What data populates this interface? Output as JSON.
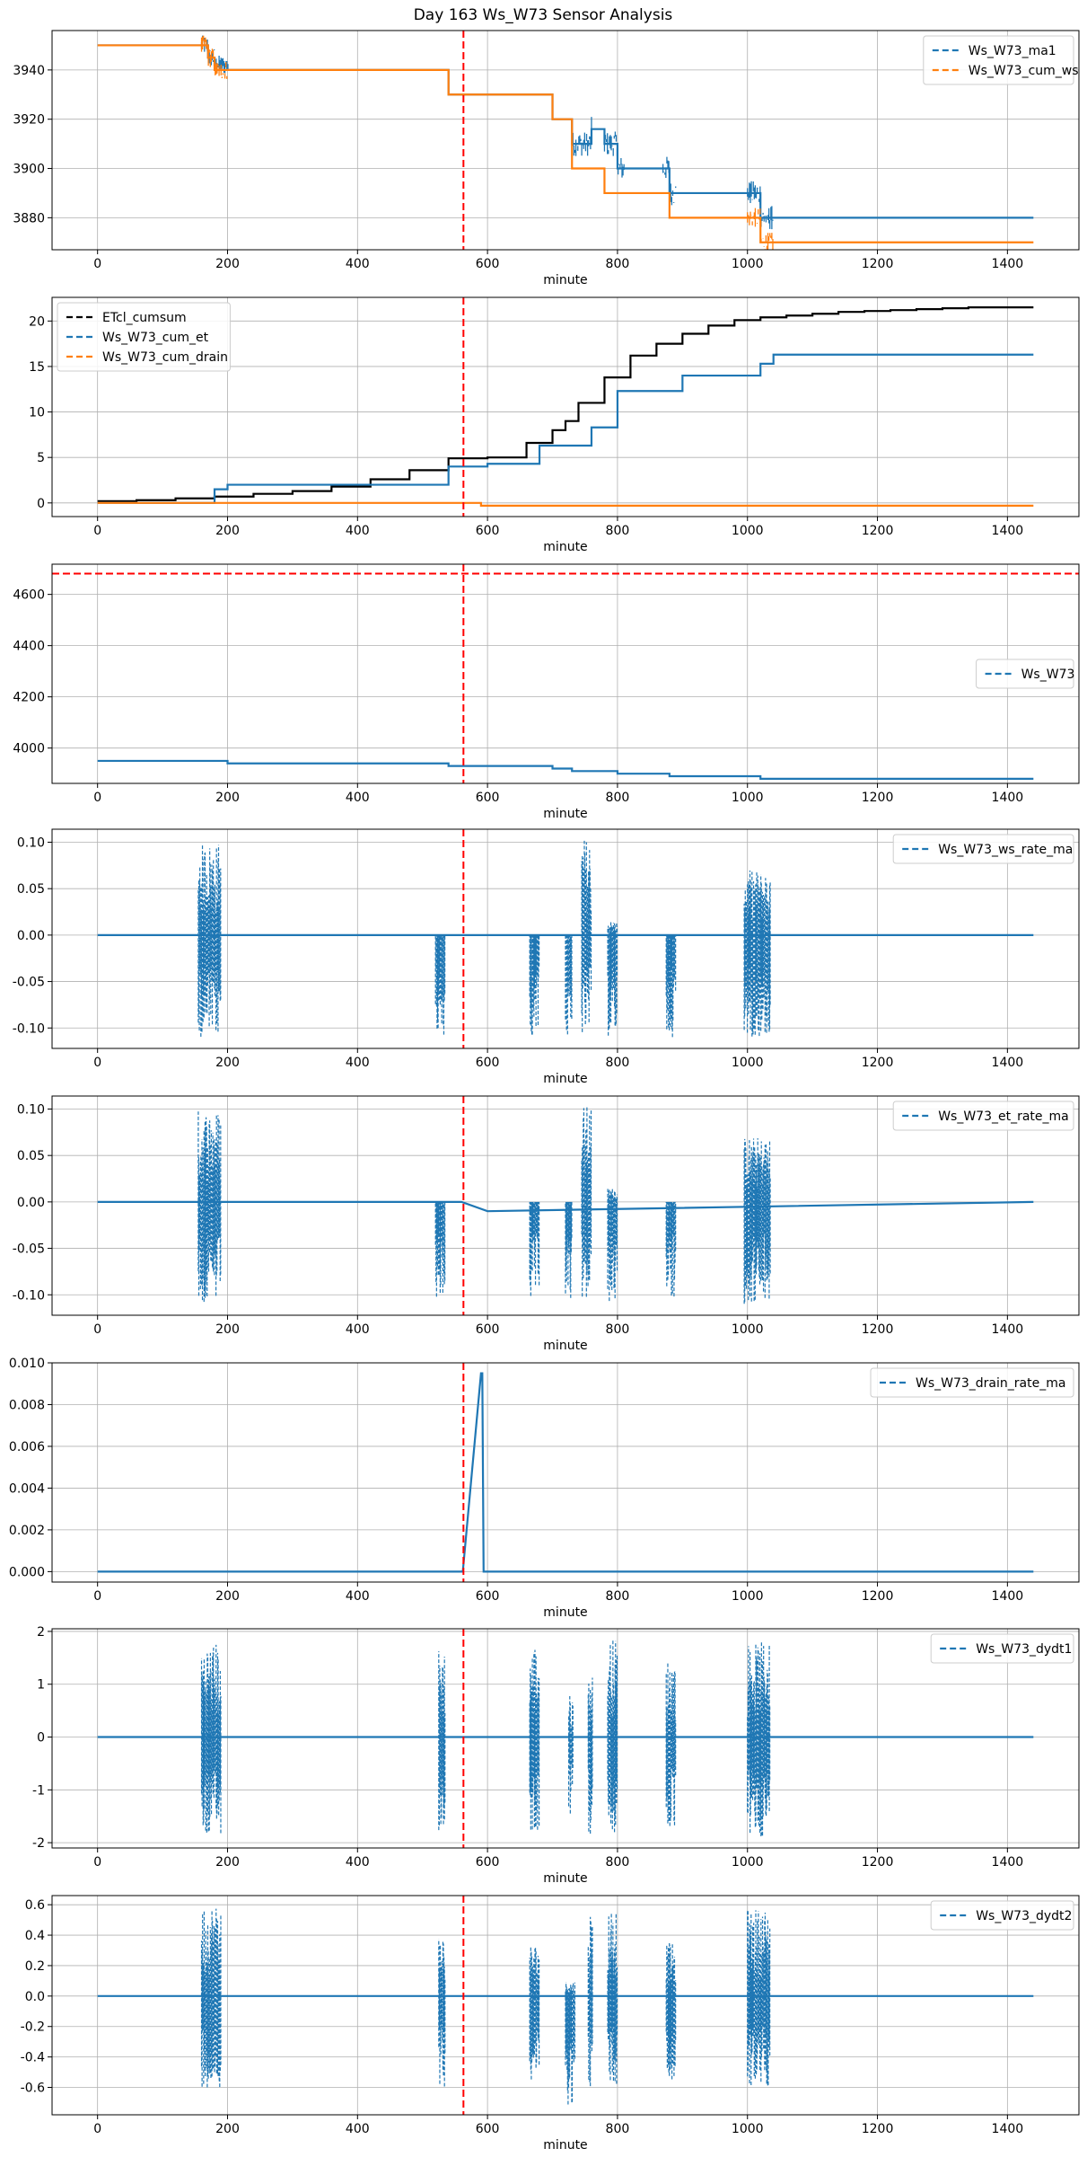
{
  "figure": {
    "title": "Day 163 Ws_W73 Sensor Analysis"
  },
  "colors": {
    "blue": "#1f77b4",
    "orange": "#ff7f0e",
    "black": "#000000",
    "red": "#ff0000",
    "grid": "#b0b0b0"
  },
  "chart_data": [
    {
      "type": "line",
      "xlabel": "minute",
      "xlim": [
        -70,
        1510
      ],
      "ylim": [
        3867,
        3956
      ],
      "xticks": [
        0,
        200,
        400,
        600,
        800,
        1000,
        1200,
        1400
      ],
      "yticks": [
        3880,
        3900,
        3920,
        3940
      ],
      "ytick_labels": [
        "3880",
        "3900",
        "3920",
        "3940"
      ],
      "grid": true,
      "legend_position": "top-right",
      "vlines": [
        563
      ],
      "series": [
        {
          "name": "Ws_W73_ma1",
          "color": "#1f77b4",
          "style": "dashed",
          "kind": "step",
          "x": [
            0,
            160,
            170,
            180,
            200,
            530,
            540,
            560,
            600,
            660,
            700,
            730,
            760,
            780,
            800,
            870,
            880,
            900,
            1000,
            1020,
            1040,
            1440
          ],
          "y": [
            3950,
            3950,
            3945,
            3942,
            3940,
            3940,
            3930,
            3930,
            3930,
            3930,
            3920,
            3910,
            3916,
            3910,
            3900,
            3900,
            3890,
            3890,
            3890,
            3880,
            3880,
            3880
          ],
          "noise": [
            [
              160,
              200,
              4
            ],
            [
              730,
              760,
              5
            ],
            [
              780,
              810,
              5
            ],
            [
              870,
              890,
              5
            ],
            [
              1000,
              1040,
              5
            ]
          ]
        },
        {
          "name": "Ws_W73_cum_ws",
          "color": "#ff7f0e",
          "style": "dashed",
          "kind": "step",
          "x": [
            0,
            160,
            170,
            180,
            200,
            530,
            540,
            560,
            600,
            660,
            700,
            730,
            760,
            780,
            800,
            870,
            880,
            900,
            1000,
            1020,
            1040,
            1440
          ],
          "y": [
            3950,
            3950,
            3945,
            3940,
            3940,
            3940,
            3930,
            3930,
            3930,
            3930,
            3920,
            3900,
            3900,
            3890,
            3890,
            3890,
            3880,
            3880,
            3880,
            3870,
            3870,
            3870
          ],
          "noise": [
            [
              160,
              200,
              4
            ],
            [
              1000,
              1040,
              4
            ]
          ]
        }
      ]
    },
    {
      "type": "line",
      "xlabel": "minute",
      "xlim": [
        -70,
        1510
      ],
      "ylim": [
        -1.5,
        22.6
      ],
      "xticks": [
        0,
        200,
        400,
        600,
        800,
        1000,
        1200,
        1400
      ],
      "yticks": [
        0,
        5,
        10,
        15,
        20
      ],
      "ytick_labels": [
        "0",
        "5",
        "10",
        "15",
        "20"
      ],
      "grid": true,
      "legend_position": "top-left",
      "vlines": [
        563
      ],
      "series": [
        {
          "name": "ETcl_cumsum",
          "color": "#000000",
          "style": "dashed",
          "kind": "step",
          "x": [
            0,
            60,
            120,
            180,
            240,
            300,
            360,
            420,
            480,
            540,
            600,
            660,
            700,
            720,
            740,
            780,
            820,
            860,
            900,
            940,
            980,
            1020,
            1060,
            1100,
            1140,
            1180,
            1220,
            1260,
            1300,
            1340,
            1380,
            1440
          ],
          "y": [
            0.2,
            0.3,
            0.5,
            0.7,
            1.0,
            1.3,
            1.8,
            2.6,
            3.6,
            4.9,
            5.0,
            6.6,
            8.0,
            9.0,
            11.0,
            13.8,
            16.2,
            17.5,
            18.6,
            19.5,
            20.1,
            20.4,
            20.6,
            20.8,
            21.0,
            21.1,
            21.2,
            21.3,
            21.4,
            21.5,
            21.5,
            21.5
          ]
        },
        {
          "name": "Ws_W73_cum_et",
          "color": "#1f77b4",
          "style": "dashed",
          "kind": "step",
          "x": [
            0,
            160,
            180,
            200,
            520,
            540,
            560,
            600,
            660,
            680,
            720,
            760,
            800,
            880,
            900,
            1000,
            1020,
            1040,
            1440
          ],
          "y": [
            0,
            0,
            1.5,
            2.0,
            2.0,
            4.0,
            4.0,
            4.3,
            4.3,
            6.3,
            6.3,
            8.3,
            12.3,
            12.3,
            14.0,
            14.0,
            15.3,
            16.3,
            16.3
          ]
        },
        {
          "name": "Ws_W73_cum_drain",
          "color": "#ff7f0e",
          "style": "dashed",
          "kind": "step",
          "x": [
            0,
            560,
            590,
            1440
          ],
          "y": [
            0,
            0,
            -0.3,
            -0.3
          ]
        }
      ]
    },
    {
      "type": "line",
      "xlabel": "minute",
      "xlim": [
        -70,
        1510
      ],
      "ylim": [
        3862,
        4718
      ],
      "xticks": [
        0,
        200,
        400,
        600,
        800,
        1000,
        1200,
        1400
      ],
      "yticks": [
        4000,
        4200,
        4400,
        4600
      ],
      "ytick_labels": [
        "4000",
        "4200",
        "4400",
        "4600"
      ],
      "grid": true,
      "legend_position": "center-right",
      "vlines": [
        563
      ],
      "hlines": [
        4681
      ],
      "series": [
        {
          "name": "Ws_W73",
          "color": "#1f77b4",
          "style": "dashed",
          "kind": "step",
          "x": [
            0,
            180,
            200,
            530,
            540,
            700,
            730,
            800,
            880,
            1000,
            1020,
            1440
          ],
          "y": [
            3950,
            3950,
            3940,
            3940,
            3930,
            3920,
            3910,
            3900,
            3890,
            3890,
            3880,
            3880
          ]
        }
      ]
    },
    {
      "type": "line",
      "xlabel": "minute",
      "xlim": [
        -70,
        1510
      ],
      "ylim": [
        -0.122,
        0.114
      ],
      "xticks": [
        0,
        200,
        400,
        600,
        800,
        1000,
        1200,
        1400
      ],
      "yticks": [
        -0.1,
        -0.05,
        0.0,
        0.05,
        0.1
      ],
      "ytick_labels": [
        "-0.10",
        "-0.05",
        "0.00",
        "0.05",
        "0.10"
      ],
      "grid": true,
      "legend_position": "top-right",
      "vlines": [
        563
      ],
      "series": [
        {
          "name": "Ws_W73_ws_rate_ma",
          "color": "#1f77b4",
          "style": "dashed",
          "kind": "bursts",
          "x": [
            0,
            1440
          ],
          "y": [
            0,
            0
          ],
          "bursts": [
            [
              155,
              190,
              -0.11,
              0.1
            ],
            [
              520,
              535,
              -0.11,
              0.0
            ],
            [
              665,
              680,
              -0.11,
              0.0
            ],
            [
              720,
              730,
              -0.11,
              0.0
            ],
            [
              745,
              760,
              -0.11,
              0.105
            ],
            [
              785,
              800,
              -0.11,
              0.015
            ],
            [
              875,
              890,
              -0.11,
              0.0
            ],
            [
              995,
              1035,
              -0.11,
              0.07
            ]
          ]
        }
      ]
    },
    {
      "type": "line",
      "xlabel": "minute",
      "xlim": [
        -70,
        1510
      ],
      "ylim": [
        -0.122,
        0.114
      ],
      "xticks": [
        0,
        200,
        400,
        600,
        800,
        1000,
        1200,
        1400
      ],
      "yticks": [
        -0.1,
        -0.05,
        0.0,
        0.05,
        0.1
      ],
      "ytick_labels": [
        "-0.10",
        "-0.05",
        "0.00",
        "0.05",
        "0.10"
      ],
      "grid": true,
      "legend_position": "top-right",
      "vlines": [
        563
      ],
      "series": [
        {
          "name": "Ws_W73_et_rate_ma",
          "color": "#1f77b4",
          "style": "dashed",
          "kind": "bursts",
          "x": [
            0,
            560,
            600,
            1440
          ],
          "y": [
            0,
            0,
            -0.01,
            0
          ],
          "bursts": [
            [
              155,
              190,
              -0.11,
              0.1
            ],
            [
              520,
              535,
              -0.11,
              0.0
            ],
            [
              665,
              680,
              -0.11,
              0.0
            ],
            [
              720,
              730,
              -0.11,
              0.0
            ],
            [
              745,
              760,
              -0.11,
              0.105
            ],
            [
              785,
              800,
              -0.11,
              0.015
            ],
            [
              875,
              890,
              -0.11,
              0.0
            ],
            [
              995,
              1035,
              -0.11,
              0.07
            ]
          ]
        }
      ]
    },
    {
      "type": "line",
      "xlabel": "minute",
      "xlim": [
        -70,
        1510
      ],
      "ylim": [
        -0.0005,
        0.01
      ],
      "xticks": [
        0,
        200,
        400,
        600,
        800,
        1000,
        1200,
        1400
      ],
      "yticks": [
        0.0,
        0.002,
        0.004,
        0.006,
        0.008,
        0.01
      ],
      "ytick_labels": [
        "0.000",
        "0.002",
        "0.004",
        "0.006",
        "0.008",
        "0.010"
      ],
      "grid": true,
      "legend_position": "top-right",
      "vlines": [
        563
      ],
      "series": [
        {
          "name": "Ws_W73_drain_rate_ma",
          "color": "#1f77b4",
          "style": "dashed",
          "kind": "line",
          "x": [
            0,
            562,
            590,
            592,
            594,
            600,
            1440
          ],
          "y": [
            0,
            0,
            0.0095,
            0.0095,
            0,
            0,
            0
          ]
        }
      ]
    },
    {
      "type": "line",
      "xlabel": "minute",
      "xlim": [
        -70,
        1510
      ],
      "ylim": [
        -2.1,
        2.05
      ],
      "xticks": [
        0,
        200,
        400,
        600,
        800,
        1000,
        1200,
        1400
      ],
      "yticks": [
        -2,
        -1,
        0,
        1,
        2
      ],
      "ytick_labels": [
        "-2",
        "-1",
        "0",
        "1",
        "2"
      ],
      "grid": true,
      "legend_position": "top-right",
      "vlines": [
        563
      ],
      "series": [
        {
          "name": "Ws_W73_dydt1",
          "color": "#1f77b4",
          "style": "dashed",
          "kind": "bursts",
          "x": [
            0,
            1440
          ],
          "y": [
            0,
            0
          ],
          "bursts": [
            [
              160,
              190,
              -1.9,
              1.8
            ],
            [
              525,
              535,
              -1.8,
              1.7
            ],
            [
              665,
              680,
              -1.8,
              1.8
            ],
            [
              725,
              732,
              -1.5,
              0.8
            ],
            [
              755,
              762,
              -1.9,
              1.2
            ],
            [
              785,
              800,
              -1.9,
              1.9
            ],
            [
              875,
              890,
              -1.8,
              1.5
            ],
            [
              1000,
              1035,
              -1.9,
              1.8
            ]
          ]
        }
      ]
    },
    {
      "type": "line",
      "xlabel": "minute",
      "xlim": [
        -70,
        1510
      ],
      "ylim": [
        -0.78,
        0.66
      ],
      "xticks": [
        0,
        200,
        400,
        600,
        800,
        1000,
        1200,
        1400
      ],
      "yticks": [
        -0.6,
        -0.4,
        -0.2,
        0.0,
        0.2,
        0.4,
        0.6
      ],
      "ytick_labels": [
        "-0.6",
        "-0.4",
        "-0.2",
        "0.0",
        "0.2",
        "0.4",
        "0.6"
      ],
      "grid": true,
      "legend_position": "top-right",
      "vlines": [
        563
      ],
      "series": [
        {
          "name": "Ws_W73_dydt2",
          "color": "#1f77b4",
          "style": "dashed",
          "kind": "bursts",
          "x": [
            0,
            1440
          ],
          "y": [
            0,
            0
          ],
          "bursts": [
            [
              160,
              190,
              -0.6,
              0.62
            ],
            [
              525,
              535,
              -0.6,
              0.42
            ],
            [
              665,
              680,
              -0.55,
              0.35
            ],
            [
              720,
              735,
              -0.72,
              0.1
            ],
            [
              755,
              762,
              -0.6,
              0.58
            ],
            [
              785,
              800,
              -0.6,
              0.6
            ],
            [
              875,
              890,
              -0.6,
              0.35
            ],
            [
              1000,
              1035,
              -0.6,
              0.58
            ]
          ]
        }
      ]
    }
  ]
}
